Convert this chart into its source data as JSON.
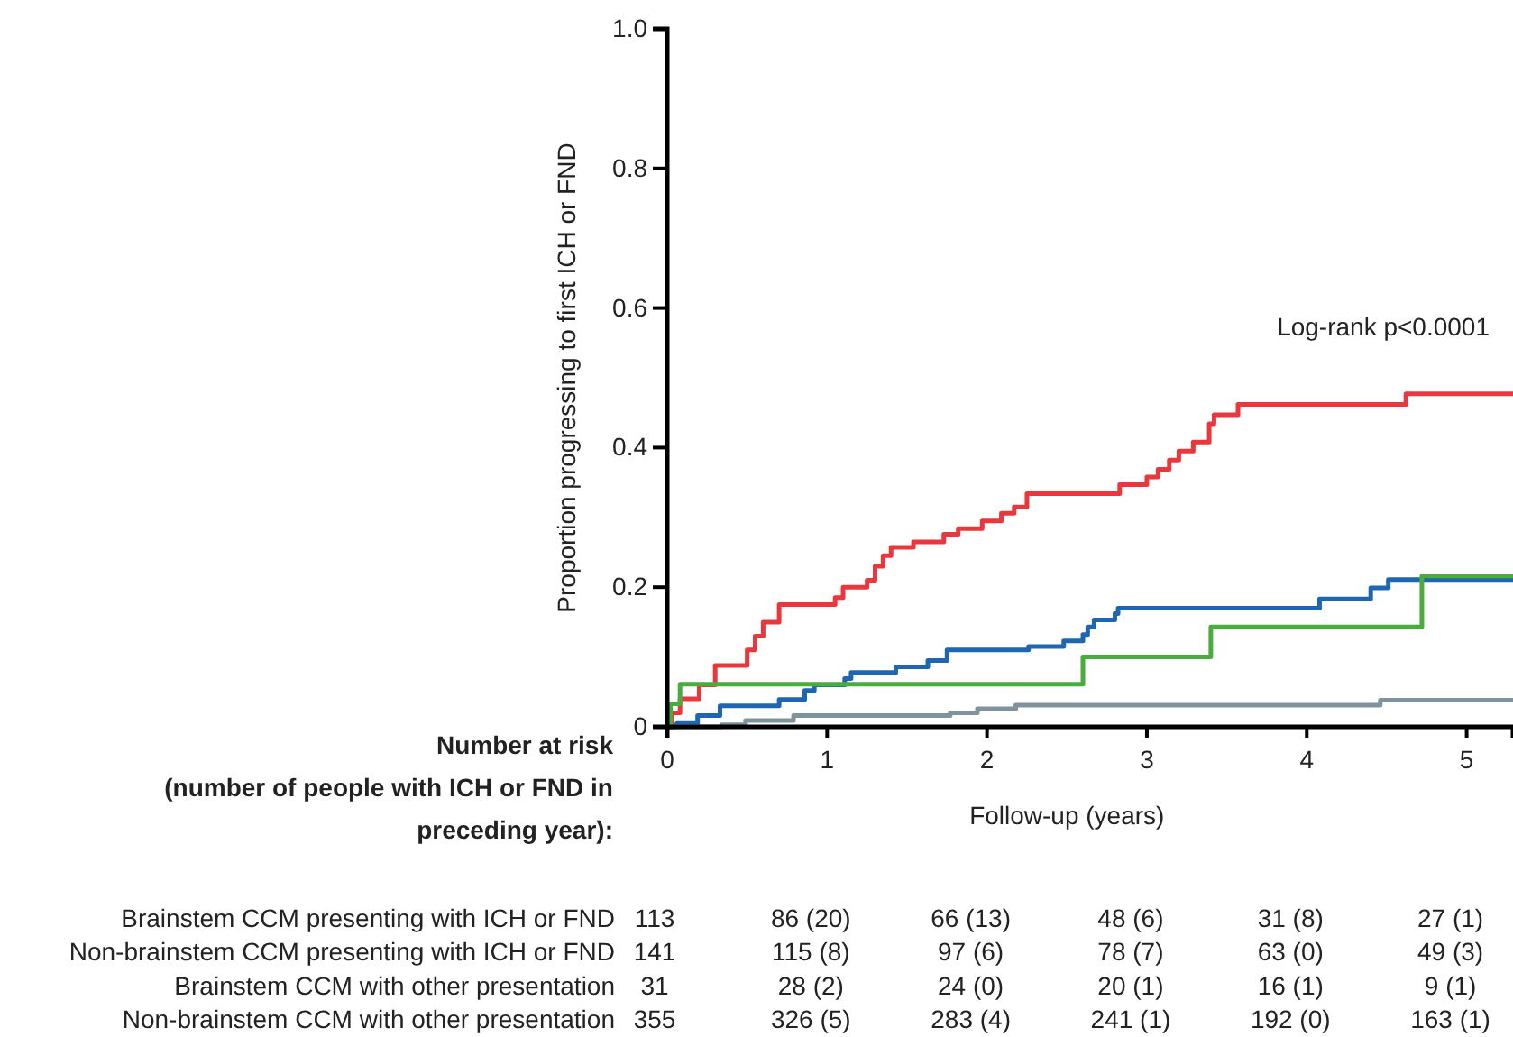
{
  "chart_data": {
    "type": "step",
    "xlabel": "Follow-up (years)",
    "ylabel": "Proportion progressing to first ICH or FND",
    "xlim": [
      0,
      5.29
    ],
    "ylim": [
      0,
      1.0
    ],
    "xticks": [
      0,
      1,
      2,
      3,
      4,
      5
    ],
    "yticks": [
      0,
      0.2,
      0.4,
      0.6,
      0.8,
      {
        "value": 1,
        "label": "1.0"
      }
    ],
    "series": [
      {
        "color": "#e8383d",
        "x": [
          0,
          0.03,
          0.08,
          0.2,
          0.3,
          0.5,
          0.55,
          0.6,
          0.7,
          1.05,
          1.1,
          1.25,
          1.3,
          1.35,
          1.4,
          1.54,
          1.73,
          1.82,
          1.97,
          2.09,
          2.17,
          2.25,
          2.83,
          3.0,
          3.07,
          3.14,
          3.2,
          3.29,
          3.39,
          3.42,
          3.57,
          4.62,
          5.29
        ],
        "values": [
          0,
          0.02,
          0.04,
          0.06,
          0.088,
          0.11,
          0.13,
          0.15,
          0.175,
          0.185,
          0.2,
          0.21,
          0.23,
          0.245,
          0.257,
          0.265,
          0.276,
          0.284,
          0.295,
          0.306,
          0.315,
          0.334,
          0.347,
          0.358,
          0.369,
          0.382,
          0.395,
          0.408,
          0.434,
          0.447,
          0.462,
          0.477,
          0.477
        ]
      },
      {
        "color": "#1f66b0",
        "x": [
          0,
          0.06,
          0.19,
          0.33,
          0.7,
          0.86,
          0.92,
          1.11,
          1.15,
          1.43,
          1.63,
          1.75,
          2.26,
          2.48,
          2.6,
          2.63,
          2.67,
          2.8,
          2.82,
          4.08,
          4.4,
          4.51,
          5.29
        ],
        "values": [
          0,
          0.005,
          0.016,
          0.03,
          0.039,
          0.052,
          0.06,
          0.069,
          0.078,
          0.086,
          0.095,
          0.11,
          0.115,
          0.123,
          0.132,
          0.143,
          0.153,
          0.162,
          0.17,
          0.183,
          0.199,
          0.211,
          0.211
        ]
      },
      {
        "color": "#4aab3f",
        "x": [
          0,
          0.02,
          0.08,
          2.6,
          3.4,
          4.72,
          5.29
        ],
        "values": [
          0,
          0.033,
          0.061,
          0.1,
          0.143,
          0.216,
          0.216
        ]
      },
      {
        "color": "#7f939c",
        "x": [
          0,
          0.34,
          0.49,
          0.79,
          1.77,
          1.94,
          2.18,
          4.46,
          5.29
        ],
        "values": [
          0,
          0.003,
          0.009,
          0.016,
          0.02,
          0.026,
          0.031,
          0.038,
          0.038
        ]
      }
    ],
    "annotations": [
      "Log-rank p<0.0001",
      "Number at risk\n(number of people with ICH or FND in\npreceding year):",
      "Brainstem CCM presenting with ICH or FND",
      "113",
      "86 (20)",
      "66 (13)",
      "48 (6)",
      "31 (8)",
      "27 (1)",
      "Non-brainstem CCM presenting with ICH or FND",
      "141",
      "115 (8)",
      "97 (6)",
      "78 (7)",
      "63 (0)",
      "49 (3)",
      "Brainstem CCM with other presentation",
      "31",
      "28 (2)",
      "24 (0)",
      "20 (1)",
      "16 (1)",
      "9 (1)",
      "Non-brainstem CCM with other presentation",
      "355",
      "326 (5)",
      "283 (4)",
      "241 (1)",
      "192 (0)",
      "163 (1)"
    ]
  }
}
